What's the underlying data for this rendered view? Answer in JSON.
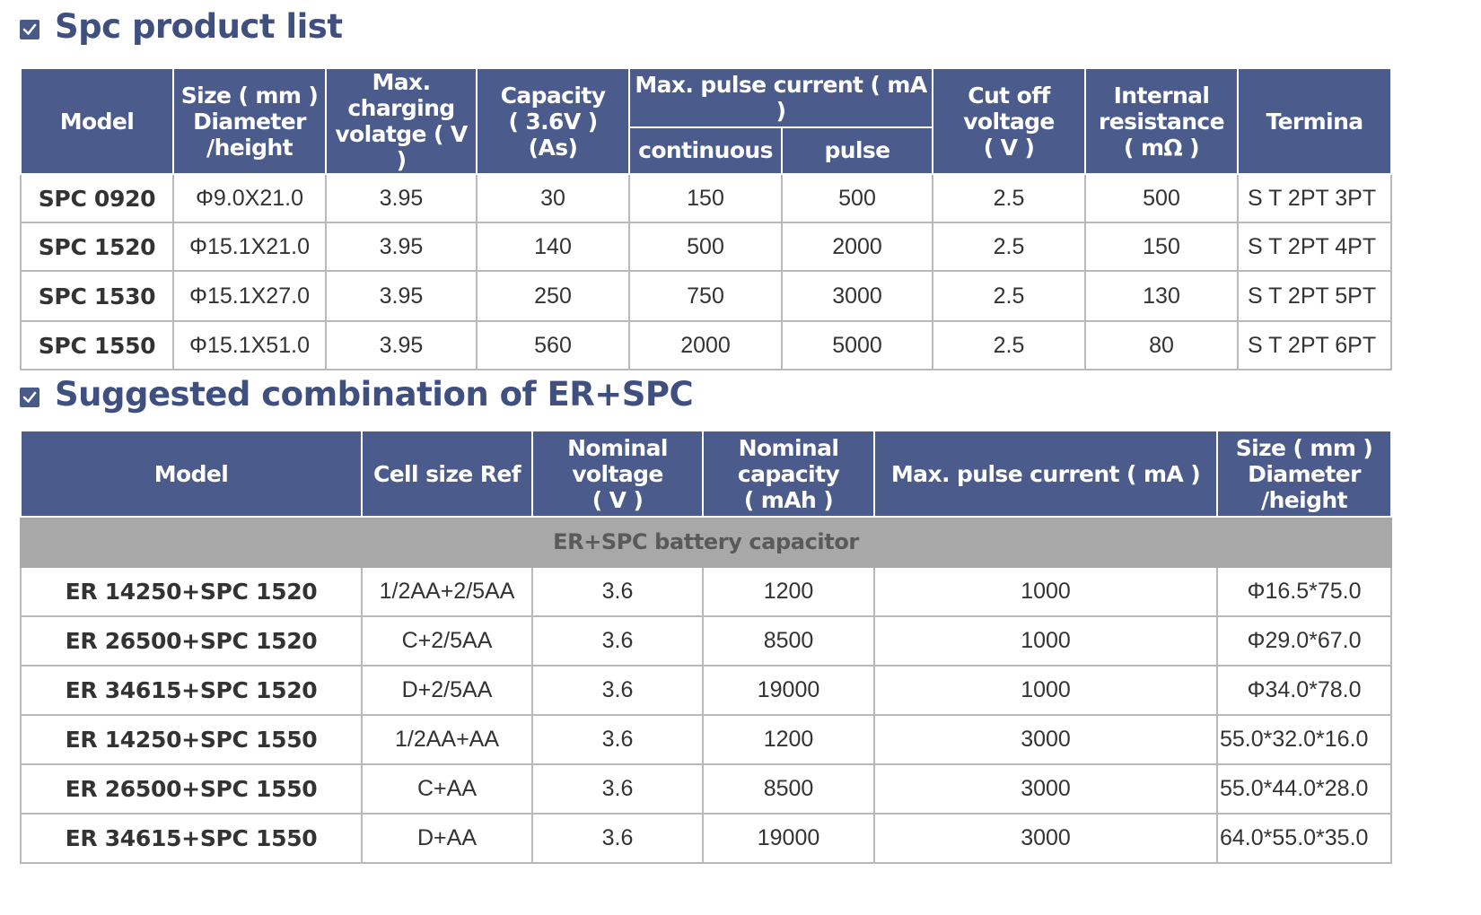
{
  "section1": {
    "title": "Spc product list",
    "headers": {
      "model": "Model",
      "size": "Size ( mm )\nDiameter\n/height",
      "max_charging": "Max.\ncharging\nvolatge ( V )",
      "capacity": "Capacity\n( 3.6V )\n(As)",
      "max_pulse": "Max. pulse current ( mA )",
      "continuous": "continuous",
      "pulse": "pulse",
      "cutoff": "Cut off\nvoltage\n( V )",
      "internal": "Internal\nresistance\n( mΩ )",
      "terminal": "Termina"
    },
    "rows": [
      {
        "model": "SPC 0920",
        "size": "Φ9.0X21.0",
        "max_charging": "3.95",
        "capacity": "30",
        "continuous": "150",
        "pulse": "500",
        "cutoff": "2.5",
        "internal": "500",
        "terminal": "S T 2PT 3PT"
      },
      {
        "model": "SPC 1520",
        "size": "Φ15.1X21.0",
        "max_charging": "3.95",
        "capacity": "140",
        "continuous": "500",
        "pulse": "2000",
        "cutoff": "2.5",
        "internal": "150",
        "terminal": "S T 2PT 4PT"
      },
      {
        "model": "SPC 1530",
        "size": "Φ15.1X27.0",
        "max_charging": "3.95",
        "capacity": "250",
        "continuous": "750",
        "pulse": "3000",
        "cutoff": "2.5",
        "internal": "130",
        "terminal": "S T 2PT 5PT"
      },
      {
        "model": "SPC 1550",
        "size": "Φ15.1X51.0",
        "max_charging": "3.95",
        "capacity": "560",
        "continuous": "2000",
        "pulse": "5000",
        "cutoff": "2.5",
        "internal": "80",
        "terminal": "S T 2PT 6PT"
      }
    ]
  },
  "section2": {
    "title": "Suggested combination of ER+SPC",
    "headers": {
      "model": "Model",
      "cell_size": "Cell size Ref",
      "nominal_voltage": "Nominal\nvoltage\n( V )",
      "nominal_capacity": "Nominal\ncapacity\n( mAh )",
      "max_pulse": "Max. pulse current ( mA )",
      "size": "Size ( mm )\nDiameter\n/height"
    },
    "group_label": "ER+SPC battery capacitor",
    "rows": [
      {
        "model": "ER 14250+SPC 1520",
        "cell_size": "1/2AA+2/5AA",
        "nominal_voltage": "3.6",
        "nominal_capacity": "1200",
        "max_pulse": "1000",
        "size": "Φ16.5*75.0"
      },
      {
        "model": "ER 26500+SPC 1520",
        "cell_size": "C+2/5AA",
        "nominal_voltage": "3.6",
        "nominal_capacity": "8500",
        "max_pulse": "1000",
        "size": "Φ29.0*67.0"
      },
      {
        "model": "ER 34615+SPC 1520",
        "cell_size": "D+2/5AA",
        "nominal_voltage": "3.6",
        "nominal_capacity": "19000",
        "max_pulse": "1000",
        "size": "Φ34.0*78.0"
      },
      {
        "model": "ER 14250+SPC 1550",
        "cell_size": "1/2AA+AA",
        "nominal_voltage": "3.6",
        "nominal_capacity": "1200",
        "max_pulse": "3000",
        "size": "55.0*32.0*16.0"
      },
      {
        "model": "ER 26500+SPC 1550",
        "cell_size": "C+AA",
        "nominal_voltage": "3.6",
        "nominal_capacity": "8500",
        "max_pulse": "3000",
        "size": "55.0*44.0*28.0"
      },
      {
        "model": "ER 34615+SPC 1550",
        "cell_size": "D+AA",
        "nominal_voltage": "3.6",
        "nominal_capacity": "19000",
        "max_pulse": "3000",
        "size": "64.0*55.0*35.0"
      }
    ]
  },
  "colors": {
    "header_bg": "#4a5b8c",
    "title_text": "#3e4f80",
    "group_row_bg": "#a8a8a8",
    "cell_border": "#b9b9b9"
  },
  "icons": {
    "section_marker": "checkbox-checked-icon"
  }
}
